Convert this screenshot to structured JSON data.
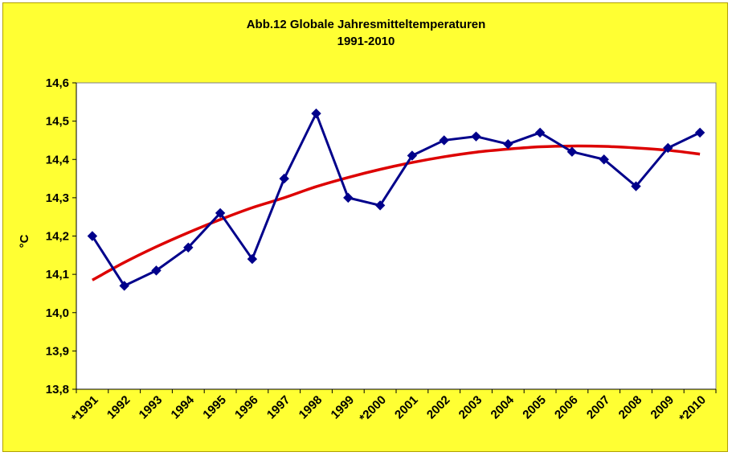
{
  "chart_data": {
    "type": "line",
    "title": "Abb.12 Globale Jahresmitteltemperaturen",
    "subtitle": "1991-2010",
    "xlabel": "",
    "ylabel": "°C",
    "ylim": [
      13.8,
      14.6
    ],
    "y_ticks": [
      "14,6",
      "14,5",
      "14,4",
      "14,3",
      "14,2",
      "14,1",
      "14,0",
      "13,9",
      "13,8"
    ],
    "categories": [
      "*1991",
      "1992",
      "1993",
      "1994",
      "1995",
      "1996",
      "1997",
      "1998",
      "1999",
      "*2000",
      "2001",
      "2002",
      "2003",
      "2004",
      "2005",
      "2006",
      "2007",
      "2008",
      "2009",
      "*2010"
    ],
    "grid": false,
    "legend": "none",
    "series": [
      {
        "values": [
          14.2,
          14.07,
          14.11,
          14.17,
          14.26,
          14.14,
          14.35,
          14.52,
          14.3,
          14.28,
          14.41,
          14.45,
          14.46,
          14.44,
          14.47,
          14.42,
          14.4,
          14.33,
          14.43,
          14.47
        ],
        "color": "#00008b",
        "marker": "diamond"
      },
      {
        "values": [
          14.085,
          14.131,
          14.172,
          14.209,
          14.243,
          14.274,
          14.3,
          14.329,
          14.353,
          14.374,
          14.392,
          14.407,
          14.419,
          14.427,
          14.433,
          14.435,
          14.434,
          14.43,
          14.424,
          14.414
        ],
        "color": "#dd0000",
        "style": "trend"
      }
    ],
    "colors": {
      "background": "#ffff33",
      "plot_area": "#ffffff",
      "axis": "#000000"
    }
  }
}
